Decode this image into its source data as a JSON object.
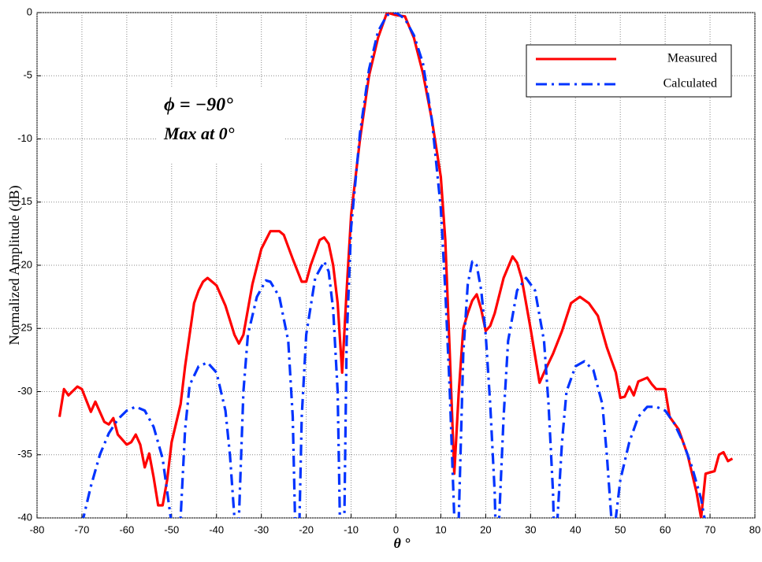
{
  "chart_data": {
    "type": "line",
    "annotations": [
      "ϕ = −90°",
      "Max at 0°"
    ],
    "xlabel": "θ °",
    "ylabel": "Normalized Amplitude (dB)",
    "xlim": [
      -80,
      80
    ],
    "ylim": [
      -40,
      0
    ],
    "xticks": [
      -80,
      -70,
      -60,
      -50,
      -40,
      -30,
      -20,
      -10,
      0,
      10,
      20,
      30,
      40,
      50,
      60,
      70,
      80
    ],
    "yticks": [
      -40,
      -35,
      -30,
      -25,
      -20,
      -15,
      -10,
      -5,
      0
    ],
    "grid": true,
    "legend": "upper right",
    "series": [
      {
        "name": "Measured",
        "color": "#ff0000",
        "style": "solid",
        "x": [
          -75,
          -74,
          -73,
          -71,
          -70,
          -68,
          -67,
          -65,
          -64,
          -63,
          -62,
          -60,
          -59,
          -58,
          -57,
          -56,
          -55,
          -54,
          -53,
          -52,
          -51,
          -50,
          -48,
          -47,
          -46,
          -45,
          -44,
          -43,
          -42,
          -41,
          -40,
          -38,
          -36,
          -35,
          -34,
          -32,
          -30,
          -28,
          -26,
          -25,
          -23,
          -21,
          -20,
          -19,
          -17,
          -16,
          -15,
          -14,
          -13,
          -12,
          -11,
          -10,
          -8,
          -6,
          -4,
          -2,
          0,
          2,
          4,
          6,
          8,
          10,
          11,
          12,
          13,
          14,
          15,
          16,
          17,
          18,
          19,
          20,
          21,
          22,
          24,
          26,
          27,
          28,
          30,
          32,
          33,
          35,
          37,
          39,
          41,
          43,
          45,
          47,
          49,
          50,
          51,
          52,
          53,
          54,
          56,
          57,
          58,
          60,
          61,
          63,
          65,
          67,
          68,
          69,
          71,
          72,
          73,
          74,
          75
        ],
        "values": [
          -32,
          -29.8,
          -30.3,
          -29.6,
          -29.8,
          -31.6,
          -30.8,
          -32.4,
          -32.6,
          -32.1,
          -33.4,
          -34.2,
          -34,
          -33.4,
          -34.2,
          -36,
          -34.9,
          -36.8,
          -39,
          -39,
          -37,
          -34,
          -31,
          -28,
          -25.5,
          -23,
          -22,
          -21.3,
          -21,
          -21.3,
          -21.6,
          -23.2,
          -25.5,
          -26.2,
          -25.5,
          -21.5,
          -18.7,
          -17.3,
          -17.3,
          -17.6,
          -19.5,
          -21.3,
          -21.3,
          -20,
          -18,
          -17.8,
          -18.3,
          -20,
          -23,
          -28.5,
          -22,
          -16,
          -10,
          -5,
          -2,
          0,
          -0.2,
          -0.3,
          -2,
          -4.8,
          -8.5,
          -13,
          -18,
          -27,
          -36.5,
          -30,
          -25,
          -23.8,
          -22.8,
          -22.3,
          -23.5,
          -25.2,
          -24.8,
          -23.8,
          -21,
          -19.3,
          -19.8,
          -21,
          -25,
          -29.3,
          -28.5,
          -27,
          -25.2,
          -23,
          -22.5,
          -23,
          -24,
          -26.5,
          -28.5,
          -30.5,
          -30.4,
          -29.6,
          -30.3,
          -29.2,
          -28.9,
          -29.4,
          -29.8,
          -29.8,
          -32,
          -33,
          -35,
          -38,
          -40,
          -36.5,
          -36.3,
          -35,
          -34.8,
          -35.5,
          -35.3
        ]
      },
      {
        "name": "Calculated",
        "color": "#0033ff",
        "style": "dashdot",
        "x": [
          -70,
          -68,
          -66,
          -64,
          -62,
          -60,
          -58,
          -56,
          -54,
          -52,
          -50,
          -49,
          -48,
          -47,
          -46,
          -44,
          -42,
          -40,
          -38,
          -37,
          -36,
          -35.5,
          -35,
          -34,
          -33,
          -31,
          -29,
          -28,
          -26,
          -24,
          -23,
          -22.5,
          -22,
          -21.5,
          -21,
          -20,
          -18,
          -16,
          -15,
          -14,
          -13,
          -12.5,
          -12,
          -11.5,
          -11,
          -10,
          -8,
          -6,
          -4,
          -2,
          0,
          2,
          4,
          6,
          8,
          10,
          11,
          12,
          13,
          13.5,
          14,
          15,
          16,
          17,
          18,
          19,
          20,
          21,
          22,
          22.5,
          23,
          24,
          25,
          27,
          29,
          31,
          33,
          34,
          35,
          35.5,
          36,
          37,
          38,
          40,
          42,
          44,
          46,
          47,
          48,
          48.5,
          49,
          50,
          52,
          54,
          56,
          58,
          60,
          62,
          64,
          66,
          68,
          69
        ],
        "values": [
          -40.5,
          -37.5,
          -35,
          -33.3,
          -32.2,
          -31.5,
          -31.2,
          -31.5,
          -32.8,
          -35.3,
          -40.5,
          -45,
          -40,
          -33,
          -29.5,
          -28,
          -27.7,
          -28.5,
          -31.5,
          -35,
          -40,
          -45,
          -40,
          -30,
          -25.5,
          -22.5,
          -21.2,
          -21.3,
          -22.5,
          -26,
          -32,
          -40,
          -45,
          -40,
          -32,
          -25.5,
          -21,
          -19.7,
          -20.5,
          -23.5,
          -30,
          -40,
          -45,
          -40,
          -26,
          -17,
          -9.5,
          -4.5,
          -1.5,
          -0.2,
          0,
          -0.5,
          -1.8,
          -4,
          -8.5,
          -15.5,
          -22,
          -30,
          -40,
          -45,
          -40,
          -27,
          -21.5,
          -19.7,
          -20,
          -22,
          -25.5,
          -31,
          -38,
          -45,
          -40,
          -32,
          -26,
          -22,
          -21,
          -22,
          -26,
          -31,
          -38,
          -45,
          -40,
          -34,
          -30,
          -28,
          -27.6,
          -28.3,
          -31,
          -35,
          -40,
          -45,
          -40,
          -37,
          -34,
          -32,
          -31.2,
          -31.2,
          -31.5,
          -32.5,
          -34,
          -36,
          -38.5,
          -40.5
        ]
      }
    ]
  }
}
